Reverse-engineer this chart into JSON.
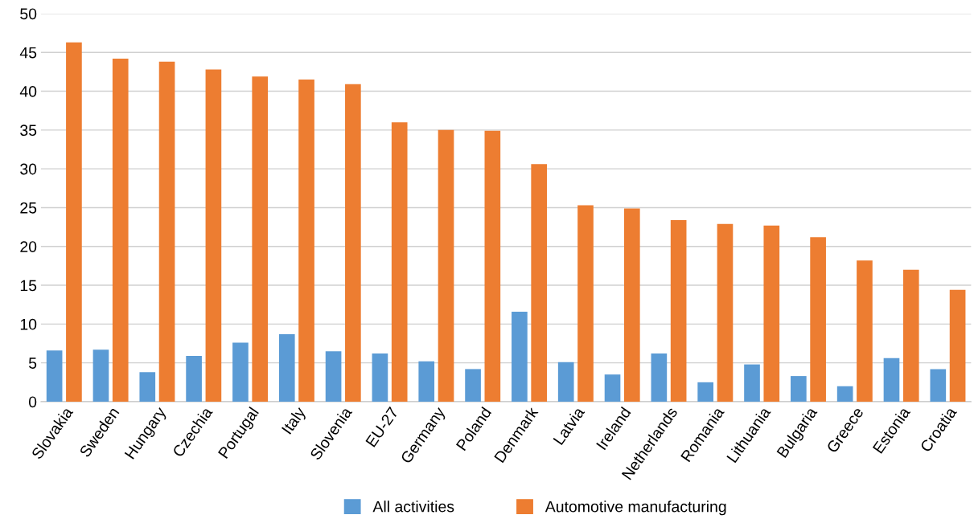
{
  "chart_data": {
    "type": "bar",
    "categories": [
      "Slovakia",
      "Sweden",
      "Hungary",
      "Czechia",
      "Portugal",
      "Italy",
      "Slovenia",
      "EU-27",
      "Germany",
      "Poland",
      "Denmark",
      "Latvia",
      "Ireland",
      "Netherlands",
      "Romania",
      "Lithuania",
      "Bulgaria",
      "Greece",
      "Estonia",
      "Croatia"
    ],
    "series": [
      {
        "name": "All activities",
        "color": "#5b9bd5",
        "values": [
          6.6,
          6.7,
          3.8,
          5.9,
          7.6,
          8.7,
          6.5,
          6.2,
          5.2,
          4.2,
          11.6,
          5.1,
          3.5,
          6.2,
          2.5,
          4.8,
          3.3,
          2.0,
          5.6,
          4.2
        ]
      },
      {
        "name": "Automotive manufacturing",
        "color": "#ed7d31",
        "values": [
          46.3,
          44.2,
          43.8,
          42.8,
          41.9,
          41.5,
          40.9,
          36.0,
          35.0,
          34.9,
          30.6,
          25.3,
          24.9,
          23.4,
          22.9,
          22.7,
          21.2,
          18.2,
          17.0,
          14.4
        ]
      }
    ],
    "ylim": [
      0,
      50
    ],
    "yticks": [
      0,
      5,
      10,
      15,
      20,
      25,
      30,
      35,
      40,
      45,
      50
    ],
    "grid": "y",
    "legend": "bottom"
  }
}
